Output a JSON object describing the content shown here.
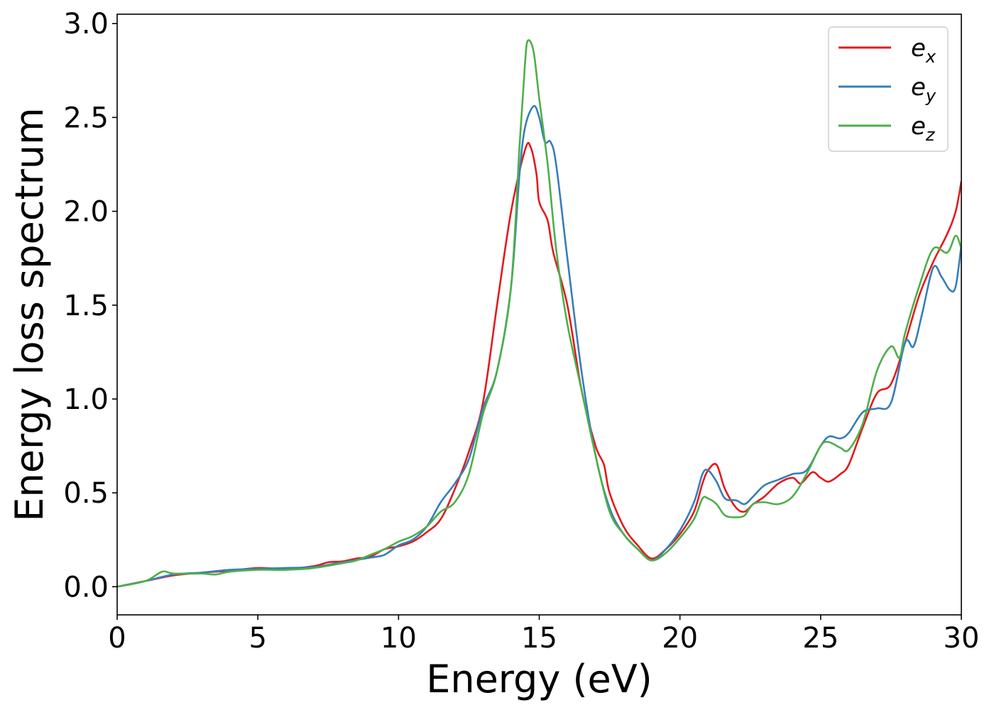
{
  "chart_data": {
    "type": "line",
    "title": "",
    "xlabel": "Energy (eV)",
    "ylabel": "Energy loss spectrum",
    "xlim": [
      0,
      30
    ],
    "ylim": [
      -0.15,
      3.05
    ],
    "xticks": [
      0,
      5,
      10,
      15,
      20,
      25,
      30
    ],
    "xtick_labels": [
      "0",
      "5",
      "10",
      "15",
      "20",
      "25",
      "30"
    ],
    "yticks": [
      0.0,
      0.5,
      1.0,
      1.5,
      2.0,
      2.5,
      3.0
    ],
    "ytick_labels": [
      "0.0",
      "0.5",
      "1.0",
      "1.5",
      "2.0",
      "2.5",
      "3.0"
    ],
    "grid": false,
    "legend_position": "top-right",
    "series": [
      {
        "name": "e_x",
        "legend_base": "e",
        "legend_sub": "x",
        "color": "#e41a1c",
        "points": [
          [
            0,
            0.0
          ],
          [
            1,
            0.03
          ],
          [
            2,
            0.06
          ],
          [
            3,
            0.075
          ],
          [
            4,
            0.085
          ],
          [
            5,
            0.1
          ],
          [
            6,
            0.095
          ],
          [
            7,
            0.11
          ],
          [
            7.5,
            0.13
          ],
          [
            8,
            0.135
          ],
          [
            8.5,
            0.15
          ],
          [
            9,
            0.16
          ],
          [
            9.5,
            0.2
          ],
          [
            10,
            0.215
          ],
          [
            10.5,
            0.24
          ],
          [
            11,
            0.29
          ],
          [
            11.5,
            0.36
          ],
          [
            12,
            0.52
          ],
          [
            12.5,
            0.72
          ],
          [
            13,
            0.98
          ],
          [
            13.5,
            1.5
          ],
          [
            14,
            2.0
          ],
          [
            14.5,
            2.33
          ],
          [
            14.7,
            2.34
          ],
          [
            14.9,
            2.2
          ],
          [
            15,
            2.05
          ],
          [
            15.3,
            1.95
          ],
          [
            15.5,
            1.78
          ],
          [
            16,
            1.5
          ],
          [
            16.5,
            1.05
          ],
          [
            17,
            0.75
          ],
          [
            17.3,
            0.65
          ],
          [
            17.5,
            0.5
          ],
          [
            18,
            0.32
          ],
          [
            18.5,
            0.22
          ],
          [
            19,
            0.15
          ],
          [
            19.5,
            0.2
          ],
          [
            20,
            0.28
          ],
          [
            20.5,
            0.4
          ],
          [
            20.8,
            0.55
          ],
          [
            21,
            0.62
          ],
          [
            21.3,
            0.65
          ],
          [
            21.6,
            0.52
          ],
          [
            22,
            0.42
          ],
          [
            22.3,
            0.4
          ],
          [
            22.6,
            0.44
          ],
          [
            23,
            0.48
          ],
          [
            23.5,
            0.55
          ],
          [
            24,
            0.58
          ],
          [
            24.3,
            0.55
          ],
          [
            24.7,
            0.61
          ],
          [
            25,
            0.58
          ],
          [
            25.3,
            0.56
          ],
          [
            25.7,
            0.6
          ],
          [
            26,
            0.65
          ],
          [
            26.5,
            0.85
          ],
          [
            27,
            1.03
          ],
          [
            27.5,
            1.08
          ],
          [
            28,
            1.3
          ],
          [
            28.5,
            1.55
          ],
          [
            29,
            1.73
          ],
          [
            29.5,
            1.88
          ],
          [
            29.8,
            2.0
          ],
          [
            30,
            2.16
          ]
        ]
      },
      {
        "name": "e_y",
        "legend_base": "e",
        "legend_sub": "y",
        "color": "#377eb8",
        "points": [
          [
            0,
            0.0
          ],
          [
            1,
            0.03
          ],
          [
            2,
            0.065
          ],
          [
            3,
            0.075
          ],
          [
            4,
            0.09
          ],
          [
            5,
            0.095
          ],
          [
            6,
            0.1
          ],
          [
            7,
            0.105
          ],
          [
            8,
            0.13
          ],
          [
            9,
            0.155
          ],
          [
            9.5,
            0.17
          ],
          [
            10,
            0.22
          ],
          [
            10.5,
            0.25
          ],
          [
            11,
            0.32
          ],
          [
            11.5,
            0.45
          ],
          [
            12,
            0.55
          ],
          [
            12.5,
            0.68
          ],
          [
            13,
            0.95
          ],
          [
            13.5,
            1.15
          ],
          [
            14,
            1.6
          ],
          [
            14.3,
            2.2
          ],
          [
            14.5,
            2.45
          ],
          [
            14.8,
            2.56
          ],
          [
            15,
            2.5
          ],
          [
            15.2,
            2.37
          ],
          [
            15.4,
            2.37
          ],
          [
            15.6,
            2.25
          ],
          [
            16,
            1.75
          ],
          [
            16.5,
            1.15
          ],
          [
            17,
            0.7
          ],
          [
            17.5,
            0.42
          ],
          [
            18,
            0.28
          ],
          [
            18.5,
            0.2
          ],
          [
            19,
            0.14
          ],
          [
            19.5,
            0.2
          ],
          [
            20,
            0.3
          ],
          [
            20.5,
            0.45
          ],
          [
            20.8,
            0.6
          ],
          [
            21,
            0.62
          ],
          [
            21.3,
            0.56
          ],
          [
            21.6,
            0.47
          ],
          [
            22,
            0.46
          ],
          [
            22.3,
            0.44
          ],
          [
            22.6,
            0.48
          ],
          [
            23,
            0.54
          ],
          [
            23.5,
            0.57
          ],
          [
            24,
            0.6
          ],
          [
            24.5,
            0.62
          ],
          [
            25,
            0.75
          ],
          [
            25.3,
            0.8
          ],
          [
            25.7,
            0.79
          ],
          [
            26,
            0.82
          ],
          [
            26.5,
            0.93
          ],
          [
            27,
            0.95
          ],
          [
            27.5,
            0.98
          ],
          [
            28,
            1.3
          ],
          [
            28.3,
            1.28
          ],
          [
            28.6,
            1.45
          ],
          [
            29,
            1.7
          ],
          [
            29.3,
            1.65
          ],
          [
            29.6,
            1.58
          ],
          [
            29.8,
            1.6
          ],
          [
            30,
            1.82
          ]
        ]
      },
      {
        "name": "e_z",
        "legend_base": "e",
        "legend_sub": "z",
        "color": "#4daf4a",
        "points": [
          [
            0,
            0.0
          ],
          [
            1,
            0.03
          ],
          [
            1.6,
            0.08
          ],
          [
            2,
            0.07
          ],
          [
            3,
            0.07
          ],
          [
            3.5,
            0.065
          ],
          [
            4,
            0.08
          ],
          [
            5,
            0.09
          ],
          [
            6,
            0.09
          ],
          [
            7,
            0.1
          ],
          [
            8,
            0.125
          ],
          [
            8.5,
            0.14
          ],
          [
            9,
            0.17
          ],
          [
            9.5,
            0.2
          ],
          [
            10,
            0.24
          ],
          [
            10.5,
            0.27
          ],
          [
            11,
            0.32
          ],
          [
            11.5,
            0.4
          ],
          [
            12,
            0.45
          ],
          [
            12.5,
            0.6
          ],
          [
            13,
            0.92
          ],
          [
            13.5,
            1.15
          ],
          [
            14,
            1.6
          ],
          [
            14.3,
            2.35
          ],
          [
            14.5,
            2.8
          ],
          [
            14.6,
            2.91
          ],
          [
            14.8,
            2.85
          ],
          [
            15,
            2.6
          ],
          [
            15.3,
            2.25
          ],
          [
            15.6,
            1.8
          ],
          [
            16,
            1.4
          ],
          [
            16.5,
            1.05
          ],
          [
            17,
            0.7
          ],
          [
            17.5,
            0.4
          ],
          [
            18,
            0.28
          ],
          [
            18.5,
            0.2
          ],
          [
            19,
            0.14
          ],
          [
            19.5,
            0.18
          ],
          [
            20,
            0.26
          ],
          [
            20.5,
            0.36
          ],
          [
            20.8,
            0.47
          ],
          [
            21,
            0.47
          ],
          [
            21.3,
            0.44
          ],
          [
            21.6,
            0.38
          ],
          [
            22,
            0.37
          ],
          [
            22.3,
            0.38
          ],
          [
            22.6,
            0.44
          ],
          [
            23,
            0.45
          ],
          [
            23.5,
            0.44
          ],
          [
            24,
            0.48
          ],
          [
            24.5,
            0.6
          ],
          [
            25,
            0.75
          ],
          [
            25.3,
            0.77
          ],
          [
            25.7,
            0.74
          ],
          [
            26,
            0.73
          ],
          [
            26.5,
            0.87
          ],
          [
            27,
            1.15
          ],
          [
            27.5,
            1.28
          ],
          [
            27.8,
            1.22
          ],
          [
            28,
            1.35
          ],
          [
            28.5,
            1.6
          ],
          [
            29,
            1.8
          ],
          [
            29.5,
            1.78
          ],
          [
            29.8,
            1.87
          ],
          [
            30,
            1.8
          ]
        ]
      }
    ]
  }
}
